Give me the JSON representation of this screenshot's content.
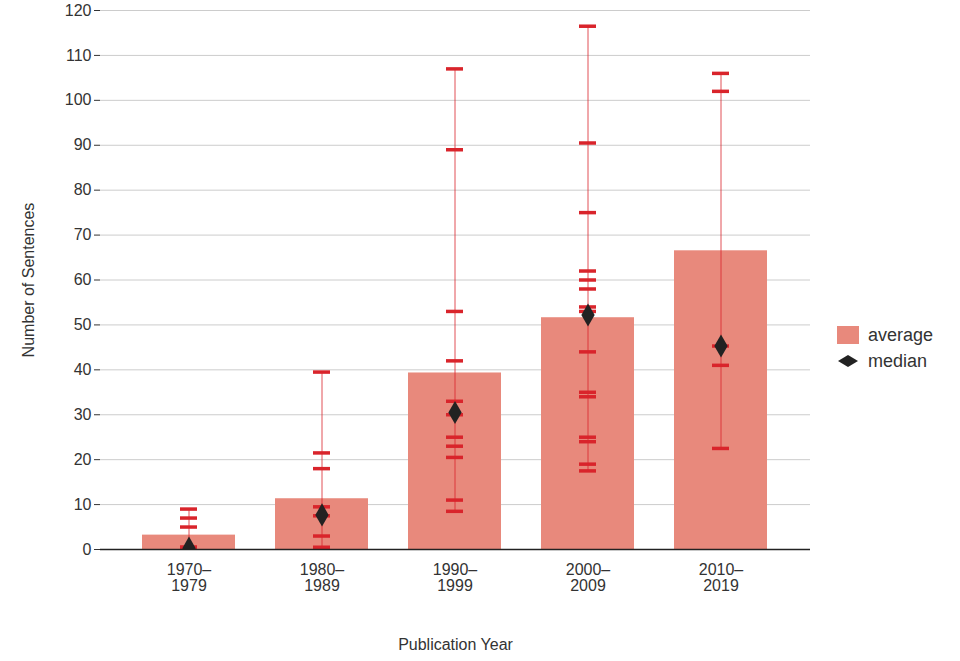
{
  "chart_data": {
    "type": "bar",
    "x_label": "Publication Year",
    "y_label": "Number of Sentences",
    "categories": [
      "1970–\n1979",
      "1980–\n1989",
      "1990–\n1999",
      "2000–\n2009",
      "2010–\n2019"
    ],
    "series": [
      {
        "name": "average",
        "type": "bar",
        "color": "#e8897c",
        "values": [
          3.2,
          11.3,
          39.3,
          51.6,
          66.5
        ]
      },
      {
        "name": "median",
        "type": "scatter",
        "marker": "diamond",
        "color": "#222222",
        "values": [
          0.3,
          7.7,
          30.5,
          52.2,
          45.3
        ]
      }
    ],
    "points": [
      [
        0.5,
        0.5,
        5,
        7,
        9
      ],
      [
        0.5,
        3,
        7.5,
        9.5,
        18,
        21.5,
        39.5
      ],
      [
        8.5,
        11,
        20.5,
        23,
        25,
        30,
        33,
        42,
        53,
        89,
        107
      ],
      [
        17.5,
        19,
        24,
        25,
        34,
        35,
        44,
        53,
        54,
        58,
        60,
        62,
        75,
        90.5,
        116.5
      ],
      [
        22.5,
        41,
        45.3,
        102,
        106
      ]
    ],
    "ylim": [
      0,
      120
    ],
    "yticks": [
      0,
      10,
      20,
      30,
      40,
      50,
      60,
      70,
      80,
      90,
      100,
      110,
      120
    ],
    "grid": true,
    "legend": "right"
  }
}
